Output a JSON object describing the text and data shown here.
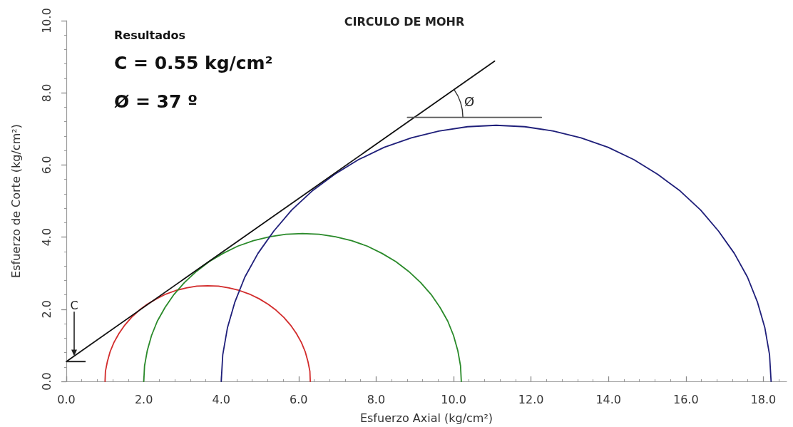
{
  "chart_data": {
    "type": "line",
    "title": "CIRCULO DE MOHR",
    "xlabel": "Esfuerzo Axial (kg/cm²)",
    "ylabel": "Esfuerzo de Corte (kg/cm²)",
    "annotations": [
      "Resultados",
      "C = 0.55 kg/cm²",
      "Ø = 37 º",
      "C",
      "Ø"
    ],
    "xlim": [
      0,
      18.6
    ],
    "ylim": [
      0,
      10
    ],
    "xticks": [
      {
        "value": 0,
        "label": "0.0"
      },
      {
        "value": 0.4,
        "label": null
      },
      {
        "value": 0.8,
        "label": null
      },
      {
        "value": 1.2,
        "label": null
      },
      {
        "value": 1.6,
        "label": null
      },
      {
        "value": 2,
        "label": "2.0"
      },
      {
        "value": 2.4,
        "label": null
      },
      {
        "value": 2.8,
        "label": null
      },
      {
        "value": 3.2,
        "label": null
      },
      {
        "value": 3.6,
        "label": null
      },
      {
        "value": 4,
        "label": "4.0"
      },
      {
        "value": 4.4,
        "label": null
      },
      {
        "value": 4.8,
        "label": null
      },
      {
        "value": 5.2,
        "label": null
      },
      {
        "value": 5.6,
        "label": null
      },
      {
        "value": 6,
        "label": "6.0"
      },
      {
        "value": 6.4,
        "label": null
      },
      {
        "value": 6.8,
        "label": null
      },
      {
        "value": 7.2,
        "label": null
      },
      {
        "value": 7.6,
        "label": null
      },
      {
        "value": 8,
        "label": "8.0"
      },
      {
        "value": 8.4,
        "label": null
      },
      {
        "value": 8.8,
        "label": null
      },
      {
        "value": 9.2,
        "label": null
      },
      {
        "value": 9.6,
        "label": null
      },
      {
        "value": 10,
        "label": "10.0"
      },
      {
        "value": 10.4,
        "label": null
      },
      {
        "value": 10.8,
        "label": null
      },
      {
        "value": 11.2,
        "label": null
      },
      {
        "value": 11.6,
        "label": null
      },
      {
        "value": 12,
        "label": "12.0"
      },
      {
        "value": 12.4,
        "label": null
      },
      {
        "value": 12.8,
        "label": null
      },
      {
        "value": 13.2,
        "label": null
      },
      {
        "value": 13.6,
        "label": null
      },
      {
        "value": 14,
        "label": "14.0"
      },
      {
        "value": 14.4,
        "label": null
      },
      {
        "value": 14.8,
        "label": null
      },
      {
        "value": 15.2,
        "label": null
      },
      {
        "value": 15.6,
        "label": null
      },
      {
        "value": 16,
        "label": "16.0"
      },
      {
        "value": 16.4,
        "label": null
      },
      {
        "value": 16.8,
        "label": null
      },
      {
        "value": 17.2,
        "label": null
      },
      {
        "value": 17.6,
        "label": null
      },
      {
        "value": 18,
        "label": "18.0"
      },
      {
        "value": 18.4,
        "label": null
      }
    ],
    "yticks": [
      {
        "value": 0,
        "label": "0.0"
      },
      {
        "value": 0.4,
        "label": null
      },
      {
        "value": 0.8,
        "label": null
      },
      {
        "value": 1.2,
        "label": null
      },
      {
        "value": 1.6,
        "label": null
      },
      {
        "value": 2,
        "label": "2.0"
      },
      {
        "value": 2.4,
        "label": null
      },
      {
        "value": 2.8,
        "label": null
      },
      {
        "value": 3.2,
        "label": null
      },
      {
        "value": 3.6,
        "label": null
      },
      {
        "value": 4,
        "label": "4.0"
      },
      {
        "value": 4.4,
        "label": null
      },
      {
        "value": 4.8,
        "label": null
      },
      {
        "value": 5.2,
        "label": null
      },
      {
        "value": 5.6,
        "label": null
      },
      {
        "value": 6,
        "label": "6.0"
      },
      {
        "value": 6.4,
        "label": null
      },
      {
        "value": 6.8,
        "label": null
      },
      {
        "value": 7.2,
        "label": null
      },
      {
        "value": 7.6,
        "label": null
      },
      {
        "value": 8,
        "label": "8.0"
      },
      {
        "value": 8.4,
        "label": null
      },
      {
        "value": 8.8,
        "label": null
      },
      {
        "value": 9.2,
        "label": null
      },
      {
        "value": 9.6,
        "label": null
      },
      {
        "value": 10,
        "label": "10.0"
      }
    ],
    "grid": false,
    "marker": "none",
    "line_style": "solid",
    "series": [
      {
        "color": "#d22b2b",
        "x": [
          1,
          1.01,
          1.06,
          1.13,
          1.23,
          1.36,
          1.51,
          1.68,
          1.88,
          2.09,
          2.33,
          2.57,
          2.83,
          3.1,
          3.37,
          3.65,
          3.93,
          4.2,
          4.47,
          4.73,
          4.98,
          5.21,
          5.42,
          5.62,
          5.79,
          5.94,
          6.07,
          6.17,
          6.24,
          6.29,
          6.3
        ],
        "values": [
          0,
          0.28,
          0.55,
          0.82,
          1.08,
          1.33,
          1.56,
          1.77,
          1.97,
          2.14,
          2.29,
          2.42,
          2.52,
          2.59,
          2.64,
          2.65,
          2.64,
          2.59,
          2.52,
          2.42,
          2.29,
          2.14,
          1.97,
          1.77,
          1.56,
          1.33,
          1.08,
          0.82,
          0.55,
          0.28,
          0
        ]
      },
      {
        "color": "#2a8a2a",
        "x": [
          2,
          2.02,
          2.09,
          2.2,
          2.35,
          2.55,
          2.78,
          3.05,
          3.36,
          3.69,
          4.05,
          4.43,
          4.83,
          5.25,
          5.67,
          6.1,
          6.53,
          6.95,
          7.37,
          7.77,
          8.15,
          8.51,
          8.84,
          9.15,
          9.42,
          9.65,
          9.85,
          10,
          10.11,
          10.18,
          10.2
        ],
        "values": [
          0,
          0.43,
          0.85,
          1.27,
          1.67,
          2.05,
          2.41,
          2.74,
          3.05,
          3.32,
          3.55,
          3.75,
          3.9,
          4.01,
          4.08,
          4.1,
          4.08,
          4.01,
          3.9,
          3.75,
          3.55,
          3.32,
          3.05,
          2.74,
          2.41,
          2.05,
          1.67,
          1.27,
          0.85,
          0.43,
          0
        ]
      },
      {
        "color": "#1f1f7a",
        "x": [
          4,
          4.04,
          4.16,
          4.35,
          4.61,
          4.95,
          5.36,
          5.82,
          6.35,
          6.93,
          7.55,
          8.21,
          8.91,
          9.62,
          10.36,
          11.1,
          11.84,
          12.58,
          13.29,
          13.99,
          14.65,
          15.27,
          15.85,
          16.38,
          16.84,
          17.25,
          17.59,
          17.85,
          18.04,
          18.16,
          18.2
        ],
        "values": [
          0,
          0.74,
          1.48,
          2.19,
          2.89,
          3.55,
          4.17,
          4.75,
          5.28,
          5.74,
          6.15,
          6.49,
          6.75,
          6.94,
          7.06,
          7.1,
          7.06,
          6.94,
          6.75,
          6.49,
          6.15,
          5.74,
          5.28,
          4.75,
          4.17,
          3.55,
          2.89,
          2.19,
          1.48,
          0.74,
          0
        ]
      },
      {
        "color": "#111111",
        "x": [
          0,
          11.06
        ],
        "values": [
          0.55,
          8.88
        ]
      },
      {
        "color": "#555555",
        "x": [
          8.81,
          12.27
        ],
        "values": [
          7.32,
          7.32
        ]
      }
    ]
  }
}
